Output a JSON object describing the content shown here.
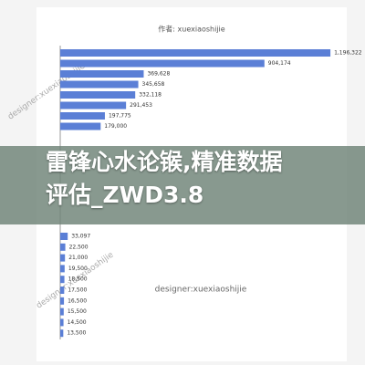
{
  "chart_data": {
    "type": "bar",
    "subtitle": "作者: xuexiaoshijie",
    "watermark": "designer:xuexiaoshijie",
    "values": [
      1196322,
      904174,
      369628,
      345658,
      332118,
      291453,
      197775,
      179000,
      33097,
      22500,
      21000,
      19500,
      18500,
      17500,
      16500,
      15500,
      14500,
      13500
    ],
    "value_labels": [
      "1,196,322",
      "904,174",
      "369,628",
      "345,658",
      "332,118",
      "291,453",
      "197,775",
      "179,000",
      "33,097",
      "22,500",
      "21,000",
      "19,500",
      "18,500",
      "17,500",
      "16,500",
      "15,500",
      "14,500",
      "13,500"
    ],
    "color": "#5b7fd6",
    "xlim": [
      0,
      1200000
    ]
  },
  "overlay": {
    "lines": [
      "雷锋心水论𬭤,精准数据",
      "评估_ZWD3.8"
    ]
  }
}
